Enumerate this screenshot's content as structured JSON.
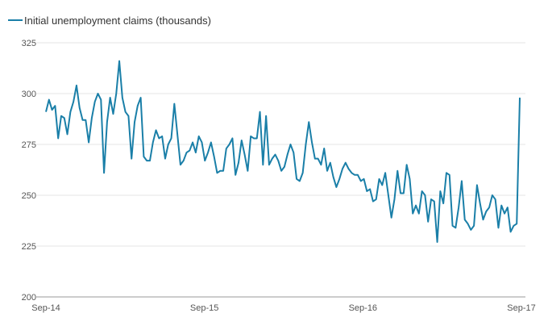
{
  "chart_data": {
    "type": "line",
    "title": "",
    "xlabel": "",
    "ylabel": "",
    "series": [
      {
        "name": "Initial unemployment claims (thousands)",
        "color": "#1a7fa8",
        "values": [
          291,
          297,
          292,
          294,
          278,
          289,
          288,
          280,
          291,
          296,
          304,
          293,
          287,
          287,
          276,
          288,
          296,
          300,
          297,
          261,
          286,
          298,
          290,
          300,
          316,
          298,
          291,
          289,
          268,
          286,
          294,
          298,
          269,
          267,
          267,
          276,
          282,
          278,
          279,
          268,
          275,
          278,
          295,
          280,
          265,
          267,
          271,
          272,
          276,
          271,
          279,
          276,
          267,
          271,
          276,
          269,
          261,
          262,
          262,
          273,
          275,
          278,
          260,
          266,
          277,
          270,
          262,
          279,
          278,
          278,
          291,
          265,
          289,
          265,
          268,
          270,
          267,
          262,
          264,
          270,
          275,
          271,
          258,
          257,
          261,
          275,
          286,
          276,
          268,
          268,
          265,
          273,
          262,
          266,
          259,
          254,
          258,
          263,
          266,
          263,
          261,
          260,
          260,
          257,
          258,
          252,
          253,
          247,
          248,
          258,
          255,
          261,
          250,
          239,
          248,
          262,
          251,
          251,
          265,
          258,
          241,
          245,
          241,
          252,
          250,
          237,
          248,
          247,
          227,
          252,
          246,
          261,
          260,
          235,
          234,
          244,
          257,
          238,
          236,
          233,
          235,
          255,
          246,
          238,
          242,
          244,
          250,
          248,
          234,
          245,
          241,
          244,
          232,
          235,
          236,
          298
        ]
      }
    ],
    "x_ticks": [
      "Sep-14",
      "Sep-15",
      "Sep-16",
      "Sep-17"
    ],
    "y_ticks": [
      200,
      225,
      250,
      275,
      300,
      325
    ],
    "ylim": [
      200,
      325
    ],
    "grid": true,
    "legend_position": "top-left"
  }
}
